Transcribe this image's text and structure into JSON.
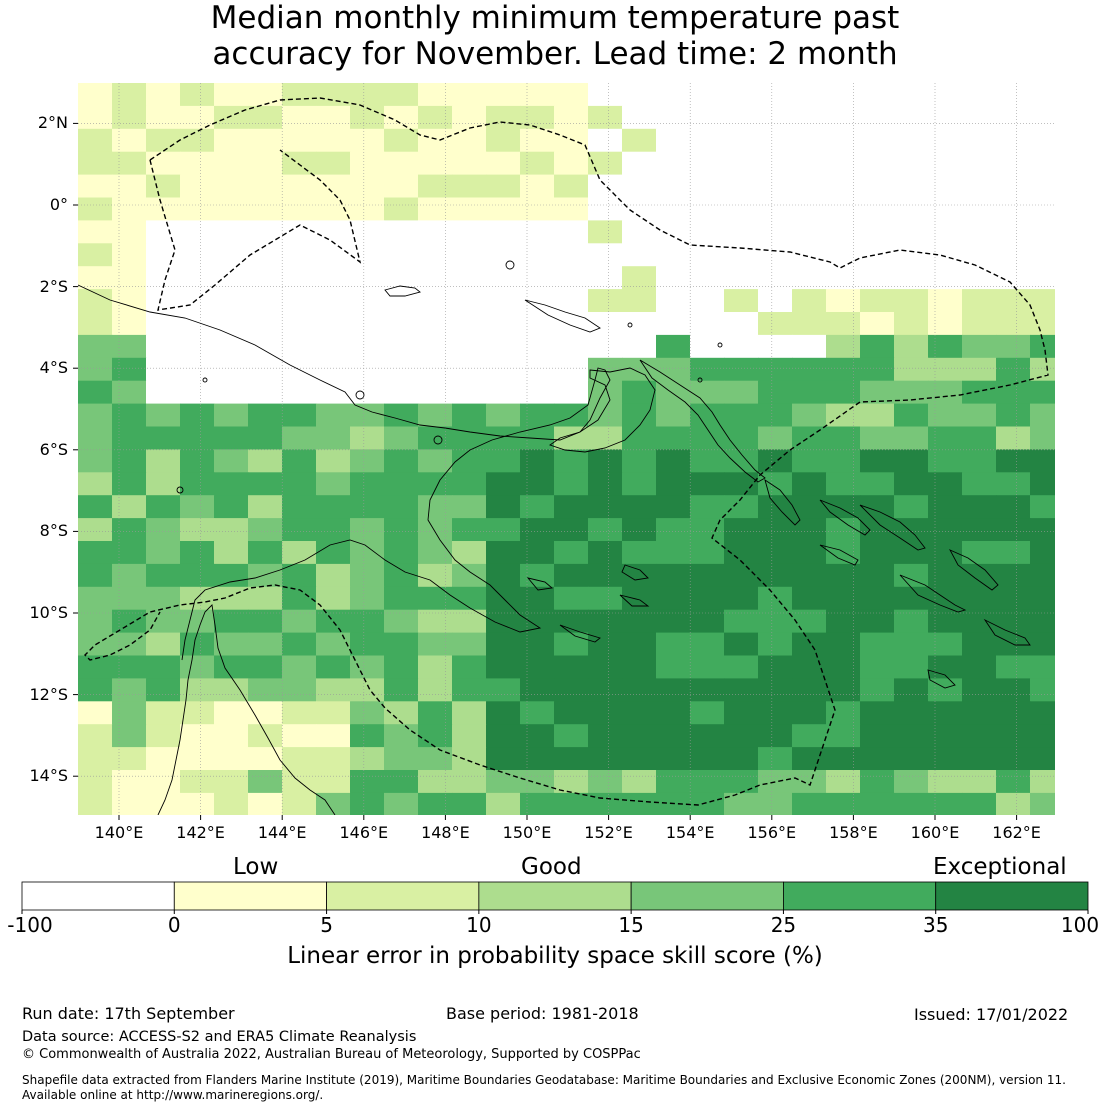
{
  "title_line1": "Median monthly minimum temperature past",
  "title_line2": "accuracy for November. Lead time: 2 month",
  "lat_labels": [
    "2°N",
    "0°",
    "2°S",
    "4°S",
    "6°S",
    "8°S",
    "10°S",
    "12°S",
    "14°S"
  ],
  "lon_labels": [
    "140°E",
    "142°E",
    "144°E",
    "146°E",
    "148°E",
    "150°E",
    "152°E",
    "154°E",
    "156°E",
    "158°E",
    "160°E",
    "162°E"
  ],
  "colorbar": {
    "categories": [
      "Low",
      "Good",
      "Exceptional"
    ],
    "ticks": [
      "-100",
      "0",
      "5",
      "10",
      "15",
      "25",
      "35",
      "100"
    ],
    "colors": [
      "#ffffff",
      "#ffffcc",
      "#d9f0a3",
      "#addd8e",
      "#78c679",
      "#41ab5d",
      "#238443"
    ],
    "label": "Linear error in probability space skill score (%)"
  },
  "footer": {
    "run_date": "Run date: 17th September",
    "base_period": "Base period: 1981-2018",
    "issued": "Issued: 17/01/2022",
    "data_source": "Data source: ACCESS-S2 and ERA5 Climate Reanalysis",
    "copyright": "© Commonwealth of Australia 2022, Australian Bureau of Meteorology, Supported by COSPPac",
    "shapefile_line1": "Shapefile data extracted from Flanders Marine Institute (2019), Maritime Boundaries Geodatabase: Maritime Boundaries and Exclusive Economic Zones (200NM), version 11.",
    "shapefile_line2": "Available online at http://www.marineregions.org/."
  }
}
